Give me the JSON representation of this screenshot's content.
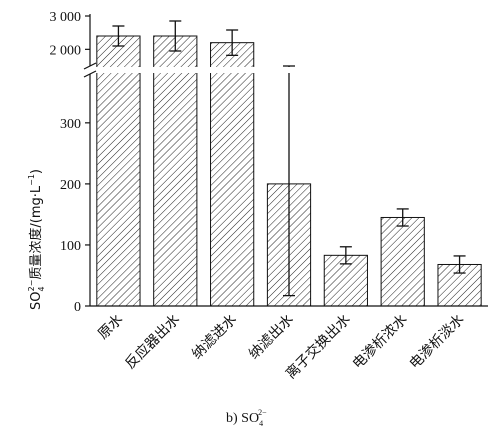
{
  "chart_data": {
    "type": "bar",
    "categories": [
      "原水",
      "反应器出水",
      "纳滤进水",
      "纳滤出水",
      "离子交换出水",
      "电渗析浓水",
      "电渗析淡水"
    ],
    "values": [
      2400,
      2400,
      2200,
      200,
      83,
      145,
      68
    ],
    "error": [
      300,
      450,
      380,
      183,
      14,
      14,
      14
    ],
    "ylabel_main": "SO",
    "ylabel_sub": "4",
    "ylabel_sup": "2−",
    "ylabel_rest": "质量浓度/(mg·L",
    "ylabel_unit_sup": "−1",
    "ylabel_end": ")",
    "caption_main": "b) SO",
    "caption_sub": "4",
    "caption_sup": "2−",
    "y_lower": {
      "range": [
        0,
        380
      ],
      "ticks": [
        0,
        100,
        200,
        300
      ],
      "tick_labels": [
        "0",
        "100",
        "200",
        "300"
      ]
    },
    "y_upper": {
      "range": [
        1500,
        3000
      ],
      "ticks": [
        2000,
        3000
      ],
      "tick_labels": [
        "2 000",
        "3 000"
      ]
    },
    "axis_break": true,
    "bar_fill": "diagonal-hatch",
    "colors": {
      "ink": "#111111",
      "background": "#ffffff"
    }
  }
}
